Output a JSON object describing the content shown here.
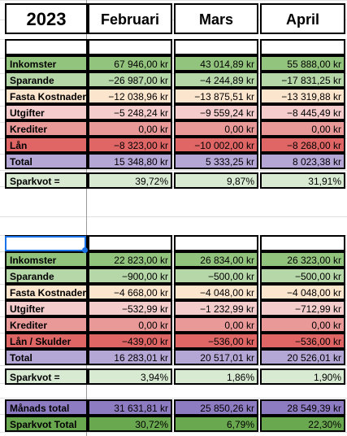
{
  "header": {
    "year": "2023",
    "months": [
      "Februari",
      "Mars",
      "April"
    ]
  },
  "table1": {
    "rows": [
      {
        "label": "Inkomster",
        "values": [
          "67 946,00 kr",
          "43 014,89 kr",
          "55 888,00 kr"
        ],
        "color": "#93c47d"
      },
      {
        "label": "Sparande",
        "values": [
          "−26 987,00 kr",
          "−4 244,89 kr",
          "−17 831,25 kr"
        ],
        "color": "#b6d7a8"
      },
      {
        "label": "Fasta Kostnader",
        "values": [
          "−12 038,96 kr",
          "−13 875,51 kr",
          "−13 319,88 kr"
        ],
        "color": "#fce5cd"
      },
      {
        "label": "Utgifter",
        "values": [
          "−5 248,24 kr",
          "−9 559,24 kr",
          "−8 445,49 kr"
        ],
        "color": "#f4cccc"
      },
      {
        "label": "Krediter",
        "values": [
          "0,00 kr",
          "0,00 kr",
          "0,00 kr"
        ],
        "color": "#ea9999"
      },
      {
        "label": "Lån",
        "values": [
          "−8 323,00 kr",
          "−10 002,00 kr",
          "−8 268,00 kr"
        ],
        "color": "#e06666"
      }
    ],
    "total": {
      "label": "Total",
      "values": [
        "15 348,80 kr",
        "5 333,25 kr",
        "8 023,38 kr"
      ],
      "color": "#b4a7d6"
    },
    "sparkvot": {
      "label": "Sparkvot =",
      "values": [
        "39,72%",
        "9,87%",
        "31,91%"
      ],
      "color": "#d9ead3"
    }
  },
  "table2": {
    "rows": [
      {
        "label": "Inkomster",
        "values": [
          "22 823,00 kr",
          "26 834,00 kr",
          "26 323,00 kr"
        ],
        "color": "#93c47d"
      },
      {
        "label": "Sparande",
        "values": [
          "−900,00 kr",
          "−500,00 kr",
          "−500,00 kr"
        ],
        "color": "#b6d7a8"
      },
      {
        "label": "Fasta Kostnader",
        "values": [
          "−4 668,00 kr",
          "−4 048,00 kr",
          "−4 048,00 kr"
        ],
        "color": "#fce5cd"
      },
      {
        "label": "Utgifter",
        "values": [
          "−532,99 kr",
          "−1 232,99 kr",
          "−712,99 kr"
        ],
        "color": "#f4cccc"
      },
      {
        "label": "Krediter",
        "values": [
          "0,00 kr",
          "0,00 kr",
          "0,00 kr"
        ],
        "color": "#ea9999"
      },
      {
        "label": "Lån / Skulder",
        "values": [
          "−439,00 kr",
          "−536,00 kr",
          "−536,00 kr"
        ],
        "color": "#e06666"
      }
    ],
    "total": {
      "label": "Total",
      "values": [
        "16 283,01 kr",
        "20 517,01 kr",
        "20 526,01 kr"
      ],
      "color": "#b4a7d6"
    },
    "sparkvot": {
      "label": "Sparkvot =",
      "values": [
        "3,94%",
        "1,86%",
        "1,90%"
      ],
      "color": "#d9ead3"
    }
  },
  "summary": {
    "manads": {
      "label": "Månads total",
      "values": [
        "31 631,81 kr",
        "25 850,26 kr",
        "28 549,39 kr"
      ],
      "color": "#8e7cc3"
    },
    "sparkvot": {
      "label": "Sparkvot Total",
      "values": [
        "30,72%",
        "6,79%",
        "22,30%"
      ],
      "color": "#6aa84f"
    }
  },
  "colors": {
    "selection": "#1a73e8",
    "gridline": "#e1e1e1",
    "border": "#000000"
  }
}
